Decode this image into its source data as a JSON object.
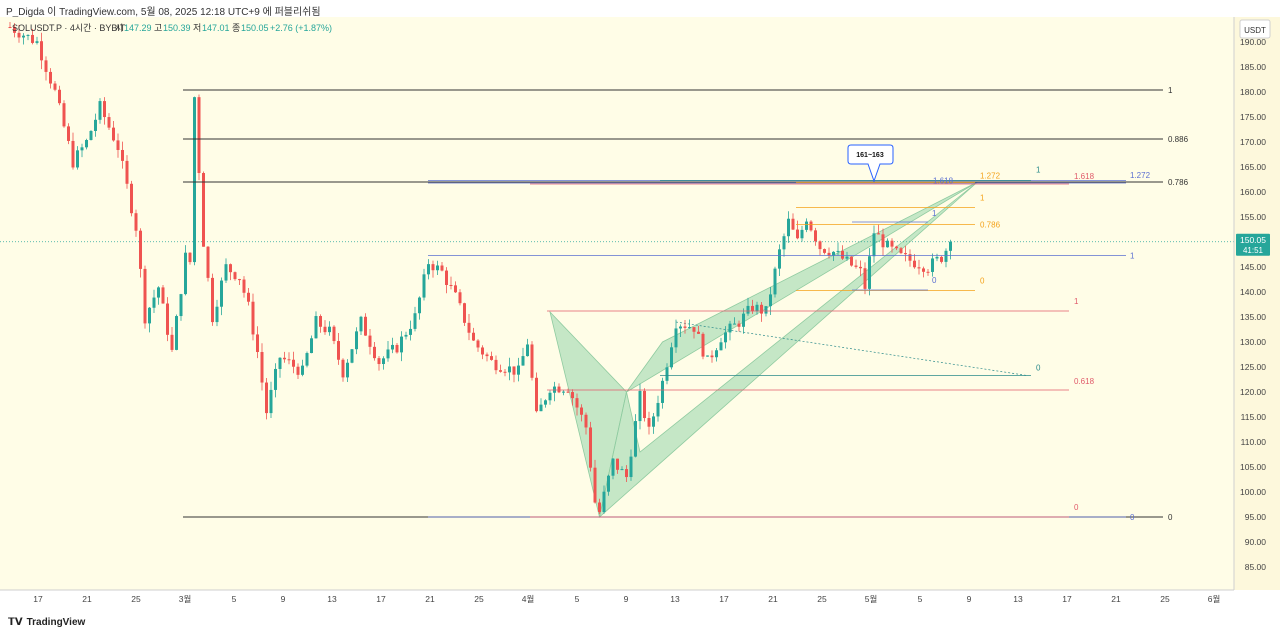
{
  "header": {
    "caption": "P_Digda 이 TradingView.com, 5월 08, 2025 12:18 UTC+9 에 퍼블리쉬됨"
  },
  "legend": {
    "symbol": "SOLUSDT.P · 4시간 · BYBIT",
    "o_label": "시",
    "o_value": "147.29",
    "h_label": "고",
    "h_value": "150.39",
    "l_label": "저",
    "l_value": "147.01",
    "c_label": "종",
    "c_value": "150.05",
    "change": "+2.76 (+1.87%)"
  },
  "footer": {
    "brand": "TradingView"
  },
  "colors": {
    "background": "#fffde7",
    "up": "#26a69a",
    "down": "#ef5350",
    "axis_bg": "#fdf8dc",
    "price_badge": "#26a69a",
    "fib_black": "#333333",
    "fib_blue": "#5b6fd1",
    "fib_orange": "#f4a21a",
    "fib_red": "#e05a6a",
    "fib_teal": "#2a8a8a",
    "pattern_fill": "#9fd9b0"
  },
  "chart_data": {
    "type": "candlestick",
    "symbol": "SOLUSDT.P",
    "interval": "4시간",
    "exchange": "BYBIT",
    "y_axis": {
      "unit_label": "USDT",
      "range": [
        82,
        196
      ],
      "ticks": [
        85,
        90,
        95,
        100,
        105,
        110,
        115,
        120,
        125,
        130,
        135,
        140,
        145,
        150,
        155,
        160,
        165,
        170,
        175,
        180,
        185,
        190
      ]
    },
    "x_axis": {
      "ticks": [
        "17",
        "21",
        "25",
        "3월",
        "5",
        "9",
        "13",
        "17",
        "21",
        "25",
        "4월",
        "5",
        "9",
        "13",
        "17",
        "21",
        "25",
        "5월",
        "5",
        "9",
        "13",
        "17",
        "21",
        "25",
        "6월"
      ]
    },
    "current_price": {
      "value": 150.05,
      "label": "150.05",
      "countdown": "41:51"
    },
    "price_path": [
      {
        "t": 0,
        "p": 193
      },
      {
        "t": 6,
        "p": 190
      },
      {
        "t": 10,
        "p": 180
      },
      {
        "t": 14,
        "p": 166
      },
      {
        "t": 17,
        "p": 170
      },
      {
        "t": 20,
        "p": 177
      },
      {
        "t": 24,
        "p": 169
      },
      {
        "t": 28,
        "p": 153
      },
      {
        "t": 30,
        "p": 135
      },
      {
        "t": 33,
        "p": 141
      },
      {
        "t": 36,
        "p": 128
      },
      {
        "t": 39,
        "p": 147
      },
      {
        "t": 40,
        "p": 146
      },
      {
        "t": 41,
        "p": 179
      },
      {
        "t": 43,
        "p": 150
      },
      {
        "t": 45,
        "p": 135
      },
      {
        "t": 48,
        "p": 145
      },
      {
        "t": 51,
        "p": 143
      },
      {
        "t": 53,
        "p": 137
      },
      {
        "t": 55,
        "p": 128
      },
      {
        "t": 57,
        "p": 116
      },
      {
        "t": 60,
        "p": 127
      },
      {
        "t": 65,
        "p": 124
      },
      {
        "t": 68,
        "p": 134
      },
      {
        "t": 71,
        "p": 132
      },
      {
        "t": 74,
        "p": 124
      },
      {
        "t": 78,
        "p": 134
      },
      {
        "t": 82,
        "p": 126
      },
      {
        "t": 86,
        "p": 129
      },
      {
        "t": 90,
        "p": 135
      },
      {
        "t": 93,
        "p": 146
      },
      {
        "t": 96,
        "p": 144
      },
      {
        "t": 99,
        "p": 139
      },
      {
        "t": 103,
        "p": 130
      },
      {
        "t": 107,
        "p": 126
      },
      {
        "t": 110,
        "p": 125
      },
      {
        "t": 113,
        "p": 124
      },
      {
        "t": 115,
        "p": 130
      },
      {
        "t": 117,
        "p": 115
      },
      {
        "t": 120,
        "p": 121
      },
      {
        "t": 124,
        "p": 121
      },
      {
        "t": 128,
        "p": 113
      },
      {
        "t": 130,
        "p": 98
      },
      {
        "t": 131,
        "p": 96
      },
      {
        "t": 134,
        "p": 106
      },
      {
        "t": 137,
        "p": 103
      },
      {
        "t": 140,
        "p": 119
      },
      {
        "t": 142,
        "p": 112
      },
      {
        "t": 145,
        "p": 122
      },
      {
        "t": 148,
        "p": 134
      },
      {
        "t": 152,
        "p": 133
      },
      {
        "t": 155,
        "p": 126
      },
      {
        "t": 158,
        "p": 131
      },
      {
        "t": 162,
        "p": 134
      },
      {
        "t": 165,
        "p": 137
      },
      {
        "t": 168,
        "p": 136
      },
      {
        "t": 171,
        "p": 148
      },
      {
        "t": 173,
        "p": 154
      },
      {
        "t": 175,
        "p": 150
      },
      {
        "t": 177,
        "p": 155
      },
      {
        "t": 180,
        "p": 149
      },
      {
        "t": 183,
        "p": 148
      },
      {
        "t": 186,
        "p": 146
      },
      {
        "t": 189,
        "p": 144
      },
      {
        "t": 190,
        "p": 141
      },
      {
        "t": 192,
        "p": 152
      },
      {
        "t": 195,
        "p": 149
      },
      {
        "t": 198,
        "p": 147
      },
      {
        "t": 201,
        "p": 146
      },
      {
        "t": 204,
        "p": 145
      },
      {
        "t": 207,
        "p": 147
      },
      {
        "t": 209,
        "p": 150
      }
    ],
    "fib_levels": [
      {
        "group": "black",
        "label": "1",
        "price": 180.4
      },
      {
        "group": "black",
        "label": "0.886",
        "price": 170.6
      },
      {
        "group": "black",
        "label": "0.786",
        "price": 162.0
      },
      {
        "group": "black",
        "label": "0",
        "price": 95.0
      },
      {
        "group": "blue",
        "label": "1.618",
        "price": 162.3
      },
      {
        "group": "blue",
        "label": "1",
        "price": 147.3
      },
      {
        "group": "blue",
        "label": "1.272",
        "price": 161.8
      },
      {
        "group": "blue",
        "label": "0",
        "price": 95.0
      },
      {
        "group": "red",
        "label": "1.618",
        "price": 161.6
      },
      {
        "group": "red",
        "label": "1",
        "price": 136.2
      },
      {
        "group": "red",
        "label": "0.618",
        "price": 120.4
      },
      {
        "group": "red",
        "label": "0",
        "price": 95.0
      },
      {
        "group": "orange",
        "label": "1.272",
        "price": 161.9
      },
      {
        "group": "orange",
        "label": "1",
        "price": 156.9
      },
      {
        "group": "orange",
        "label": "0.786",
        "price": 153.5
      },
      {
        "group": "orange",
        "label": "0",
        "price": 140.3
      },
      {
        "group": "blue_small",
        "label": "1",
        "price": 154.0
      },
      {
        "group": "blue_small",
        "label": "0",
        "price": 140.4
      },
      {
        "group": "teal",
        "label": "1",
        "price": 162.3
      },
      {
        "group": "teal",
        "label": "0",
        "price": 123.3
      }
    ],
    "annotation": {
      "text": "161~163"
    }
  }
}
